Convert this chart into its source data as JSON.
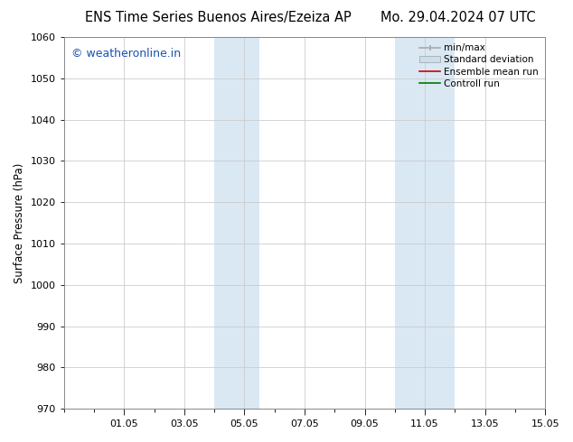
{
  "title_left": "ENS Time Series Buenos Aires/Ezeiza AP",
  "title_right": "Mo. 29.04.2024 07 UTC",
  "ylabel": "Surface Pressure (hPa)",
  "ylim": [
    970,
    1060
  ],
  "yticks": [
    970,
    980,
    990,
    1000,
    1010,
    1020,
    1030,
    1040,
    1050,
    1060
  ],
  "xlim": [
    0,
    16
  ],
  "xtick_minor_positions": [
    0,
    1,
    2,
    3,
    4,
    5,
    6,
    7,
    8,
    9,
    10,
    11,
    12,
    13,
    14,
    15,
    16
  ],
  "xtick_major_positions": [
    2,
    4,
    6,
    8,
    10,
    12,
    14,
    16
  ],
  "xtick_labels": [
    "01.05",
    "03.05",
    "05.05",
    "07.05",
    "09.05",
    "11.05",
    "13.05",
    "15.05"
  ],
  "shaded_bands": [
    {
      "x_start": 5,
      "x_end": 6.5,
      "color": "#dae8f4"
    },
    {
      "x_start": 11,
      "x_end": 13,
      "color": "#dae8f4"
    }
  ],
  "watermark_text": "© weatheronline.in",
  "watermark_color": "#1a52b0",
  "watermark_fontsize": 9,
  "legend_minmax_color": "#aaaaaa",
  "legend_std_facecolor": "#c8dff0",
  "legend_std_edgecolor": "#aaaaaa",
  "legend_mean_color": "#cc0000",
  "legend_ctrl_color": "#007700",
  "background_color": "#ffffff",
  "plot_bg_color": "#ffffff",
  "grid_color": "#cccccc",
  "title_fontsize": 10.5,
  "axis_label_fontsize": 8.5,
  "tick_fontsize": 8,
  "legend_fontsize": 7.5
}
